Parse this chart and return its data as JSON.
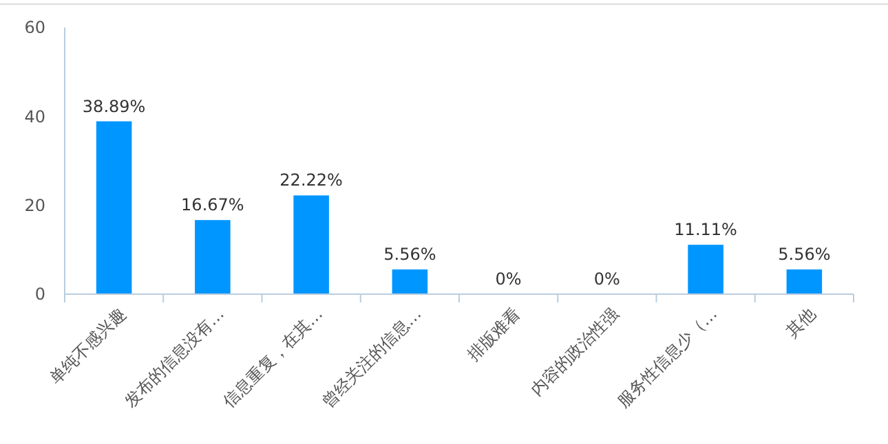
{
  "chart_data": {
    "type": "bar",
    "categories": [
      "单纯不感兴趣",
      "发布的信息没有…",
      "信息重复，在其…",
      "曾经关注的信息…",
      "排版难看",
      "内容的政治性强",
      "服务性信息少（…",
      "其他"
    ],
    "values": [
      38.89,
      16.67,
      22.22,
      5.56,
      0,
      0,
      11.11,
      5.56
    ],
    "value_labels": [
      "38.89%",
      "16.67%",
      "22.22%",
      "5.56%",
      "0%",
      "0%",
      "11.11%",
      "5.56%"
    ],
    "color": "#0096ff",
    "ylim": [
      0,
      60
    ],
    "yticks": [
      0,
      20,
      40,
      60
    ],
    "grid": false
  }
}
